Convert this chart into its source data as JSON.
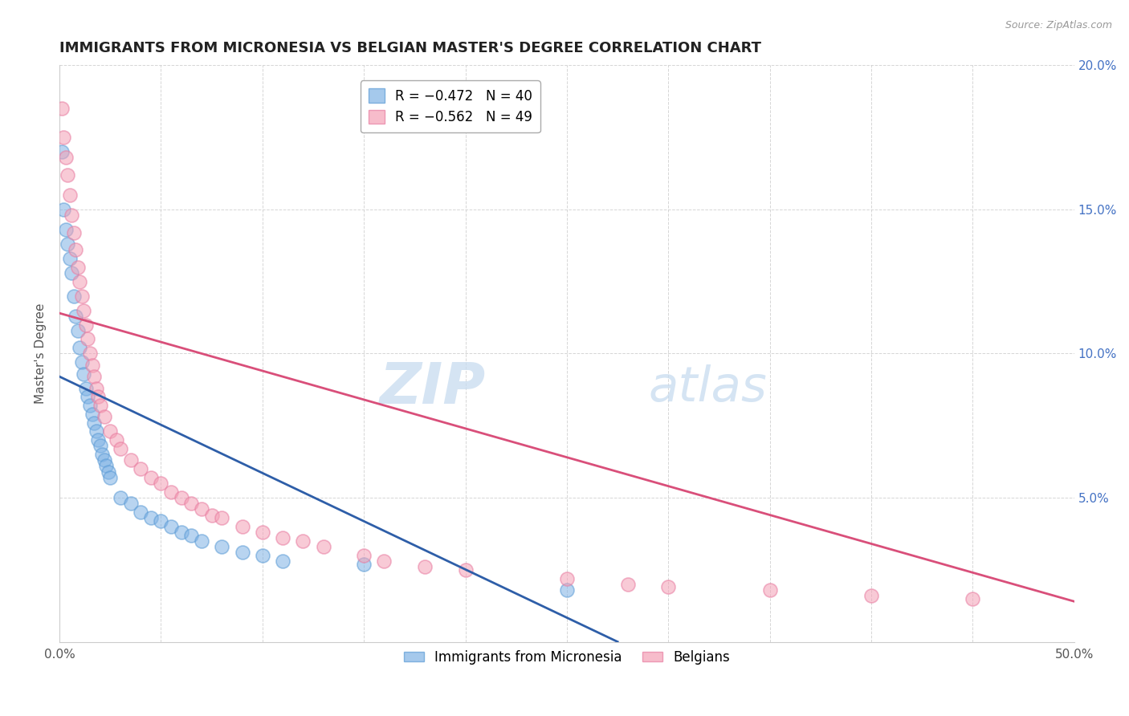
{
  "title": "IMMIGRANTS FROM MICRONESIA VS BELGIAN MASTER'S DEGREE CORRELATION CHART",
  "source": "Source: ZipAtlas.com",
  "ylabel": "Master's Degree",
  "right_ylabel_color": "#4472C4",
  "xlim": [
    0,
    0.5
  ],
  "ylim": [
    0,
    0.2
  ],
  "xticks": [
    0.0,
    0.05,
    0.1,
    0.15,
    0.2,
    0.25,
    0.3,
    0.35,
    0.4,
    0.45,
    0.5
  ],
  "yticks": [
    0.0,
    0.05,
    0.1,
    0.15,
    0.2
  ],
  "watermark_zip": "ZIP",
  "watermark_atlas": "atlas",
  "legend_label1": "Immigrants from Micronesia",
  "legend_label2": "Belgians",
  "blue_color": "#7FB2E5",
  "pink_color": "#F4A0B5",
  "blue_edge_color": "#5B9BD5",
  "pink_edge_color": "#E87BA0",
  "blue_line_color": "#2E5EA8",
  "pink_line_color": "#D94F7A",
  "blue_points": [
    [
      0.001,
      0.17
    ],
    [
      0.002,
      0.15
    ],
    [
      0.003,
      0.143
    ],
    [
      0.004,
      0.138
    ],
    [
      0.005,
      0.133
    ],
    [
      0.006,
      0.128
    ],
    [
      0.007,
      0.12
    ],
    [
      0.008,
      0.113
    ],
    [
      0.009,
      0.108
    ],
    [
      0.01,
      0.102
    ],
    [
      0.011,
      0.097
    ],
    [
      0.012,
      0.093
    ],
    [
      0.013,
      0.088
    ],
    [
      0.014,
      0.085
    ],
    [
      0.015,
      0.082
    ],
    [
      0.016,
      0.079
    ],
    [
      0.017,
      0.076
    ],
    [
      0.018,
      0.073
    ],
    [
      0.019,
      0.07
    ],
    [
      0.02,
      0.068
    ],
    [
      0.021,
      0.065
    ],
    [
      0.022,
      0.063
    ],
    [
      0.023,
      0.061
    ],
    [
      0.024,
      0.059
    ],
    [
      0.025,
      0.057
    ],
    [
      0.03,
      0.05
    ],
    [
      0.035,
      0.048
    ],
    [
      0.04,
      0.045
    ],
    [
      0.045,
      0.043
    ],
    [
      0.05,
      0.042
    ],
    [
      0.055,
      0.04
    ],
    [
      0.06,
      0.038
    ],
    [
      0.065,
      0.037
    ],
    [
      0.07,
      0.035
    ],
    [
      0.08,
      0.033
    ],
    [
      0.09,
      0.031
    ],
    [
      0.1,
      0.03
    ],
    [
      0.11,
      0.028
    ],
    [
      0.15,
      0.027
    ],
    [
      0.25,
      0.018
    ]
  ],
  "pink_points": [
    [
      0.001,
      0.185
    ],
    [
      0.002,
      0.175
    ],
    [
      0.003,
      0.168
    ],
    [
      0.004,
      0.162
    ],
    [
      0.005,
      0.155
    ],
    [
      0.006,
      0.148
    ],
    [
      0.007,
      0.142
    ],
    [
      0.008,
      0.136
    ],
    [
      0.009,
      0.13
    ],
    [
      0.01,
      0.125
    ],
    [
      0.011,
      0.12
    ],
    [
      0.012,
      0.115
    ],
    [
      0.013,
      0.11
    ],
    [
      0.014,
      0.105
    ],
    [
      0.015,
      0.1
    ],
    [
      0.016,
      0.096
    ],
    [
      0.017,
      0.092
    ],
    [
      0.018,
      0.088
    ],
    [
      0.019,
      0.085
    ],
    [
      0.02,
      0.082
    ],
    [
      0.022,
      0.078
    ],
    [
      0.025,
      0.073
    ],
    [
      0.028,
      0.07
    ],
    [
      0.03,
      0.067
    ],
    [
      0.035,
      0.063
    ],
    [
      0.04,
      0.06
    ],
    [
      0.045,
      0.057
    ],
    [
      0.05,
      0.055
    ],
    [
      0.055,
      0.052
    ],
    [
      0.06,
      0.05
    ],
    [
      0.065,
      0.048
    ],
    [
      0.07,
      0.046
    ],
    [
      0.075,
      0.044
    ],
    [
      0.08,
      0.043
    ],
    [
      0.09,
      0.04
    ],
    [
      0.1,
      0.038
    ],
    [
      0.11,
      0.036
    ],
    [
      0.12,
      0.035
    ],
    [
      0.13,
      0.033
    ],
    [
      0.15,
      0.03
    ],
    [
      0.16,
      0.028
    ],
    [
      0.18,
      0.026
    ],
    [
      0.2,
      0.025
    ],
    [
      0.25,
      0.022
    ],
    [
      0.28,
      0.02
    ],
    [
      0.3,
      0.019
    ],
    [
      0.35,
      0.018
    ],
    [
      0.4,
      0.016
    ],
    [
      0.45,
      0.015
    ]
  ],
  "blue_line": {
    "x0": 0.0,
    "y0": 0.092,
    "x1": 0.275,
    "y1": 0.0
  },
  "pink_line": {
    "x0": 0.0,
    "y0": 0.114,
    "x1": 0.5,
    "y1": 0.014
  },
  "background_color": "#FFFFFF",
  "grid_color": "#CCCCCC",
  "title_fontsize": 13,
  "tick_fontsize": 11,
  "legend_fontsize": 12
}
